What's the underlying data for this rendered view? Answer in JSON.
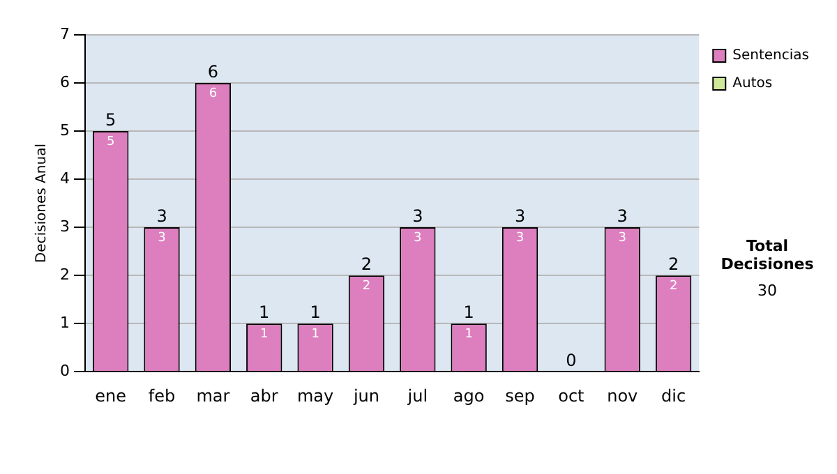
{
  "chart_data": {
    "type": "bar",
    "stacked": true,
    "ylabel": "Decisiones Anual",
    "categories": [
      "ene",
      "feb",
      "mar",
      "abr",
      "may",
      "jun",
      "jul",
      "ago",
      "sep",
      "oct",
      "nov",
      "dic"
    ],
    "series": [
      {
        "name": "Sentencias",
        "color": "#dd7fbf",
        "values": [
          5,
          3,
          6,
          1,
          1,
          2,
          3,
          1,
          3,
          0,
          3,
          2
        ],
        "value_labels": [
          "5",
          "3",
          "6",
          "1",
          "1",
          "2",
          "3",
          "1",
          "3",
          null,
          "3",
          "2"
        ]
      },
      {
        "name": "Autos",
        "color": "#cfe89a",
        "values": [
          0,
          0,
          0,
          0,
          0,
          0,
          0,
          0,
          0,
          0,
          0,
          0
        ]
      }
    ],
    "totals": [
      "5",
      "3",
      "6",
      "1",
      "1",
      "2",
      "3",
      "1",
      "3",
      "0",
      "3",
      "2"
    ],
    "ylim": [
      0,
      7
    ],
    "yticks": [
      0,
      1,
      2,
      3,
      4,
      5,
      6,
      7
    ],
    "grid": "y",
    "legend": "right",
    "annotations": [
      "Total Decisiones",
      "30"
    ]
  }
}
